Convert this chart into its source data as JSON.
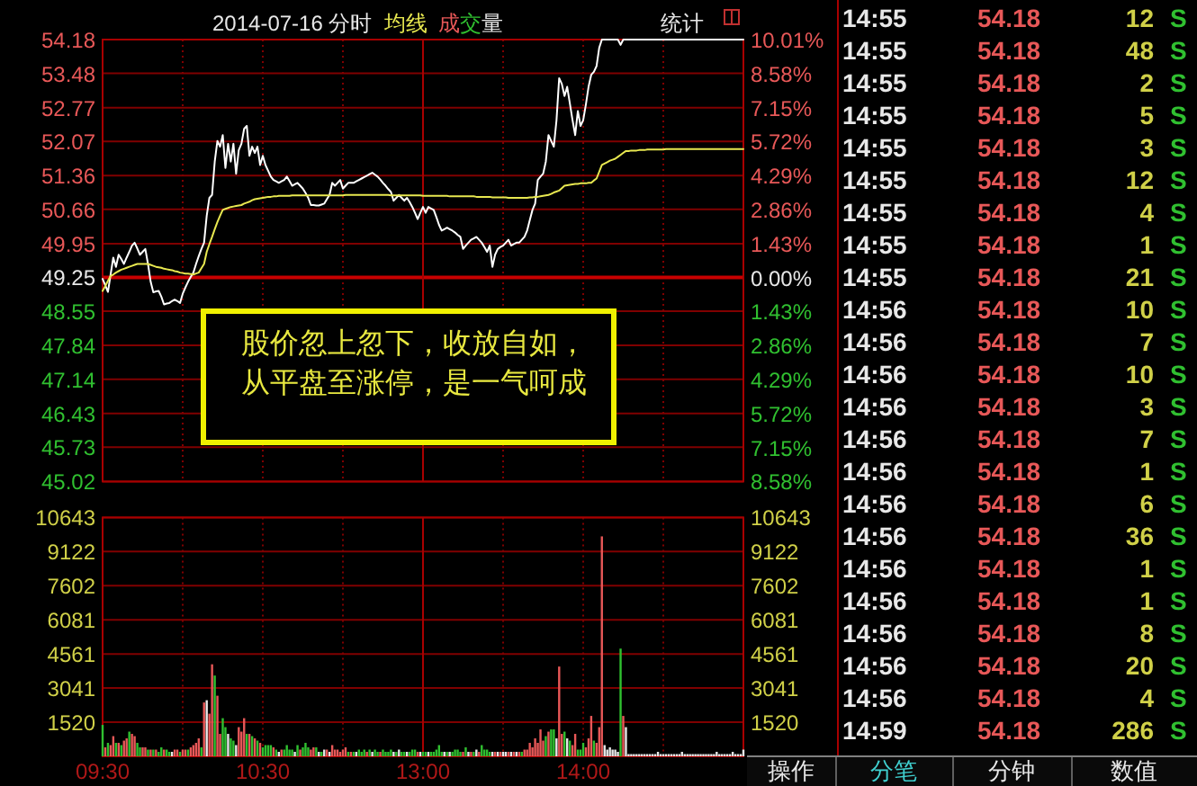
{
  "chart_data": [
    {
      "type": "line",
      "title": "2014-07-16 分时",
      "categories": [
        "09:30",
        null,
        null,
        null,
        null,
        null,
        null,
        null,
        null,
        null,
        null,
        null,
        null,
        null,
        null,
        null,
        null,
        null,
        null,
        null,
        null,
        null,
        null,
        null,
        null,
        null,
        null,
        null,
        null,
        null,
        null,
        null,
        null,
        null,
        null,
        null,
        null,
        null,
        null,
        null,
        null,
        null,
        null,
        null,
        null,
        null,
        null,
        null,
        null,
        null,
        null,
        null,
        null,
        null,
        null,
        null,
        null,
        null,
        null,
        null,
        "10:30",
        null,
        null,
        null,
        null,
        null,
        null,
        null,
        null,
        null,
        null,
        null,
        null,
        null,
        null,
        null,
        null,
        null,
        null,
        null,
        null,
        null,
        null,
        null,
        null,
        null,
        null,
        null,
        null,
        null,
        null,
        null,
        null,
        null,
        null,
        null,
        null,
        null,
        null,
        null,
        null,
        null,
        null,
        null,
        null,
        null,
        null,
        null,
        null,
        null,
        null,
        null,
        null,
        null,
        null,
        null,
        null,
        null,
        null,
        null,
        "13:00",
        null,
        null,
        null,
        null,
        null,
        null,
        null,
        null,
        null,
        null,
        null,
        null,
        null,
        null,
        null,
        null,
        null,
        null,
        null,
        null,
        null,
        null,
        null,
        null,
        null,
        null,
        null,
        null,
        null,
        null,
        null,
        null,
        null,
        null,
        null,
        null,
        null,
        null,
        null,
        null,
        null,
        null,
        null,
        null,
        null,
        null,
        null,
        null,
        null,
        null,
        null,
        null,
        null,
        null,
        null,
        null,
        null,
        null,
        null,
        "14:00",
        null,
        null,
        null,
        null,
        null,
        null,
        null,
        null,
        null,
        null,
        null,
        null,
        null,
        null,
        null,
        null,
        null,
        null,
        null,
        null,
        null,
        null,
        null,
        null,
        null,
        null,
        null,
        null,
        null,
        null,
        null,
        null,
        null,
        null,
        null,
        null,
        null,
        null,
        null,
        null,
        null,
        null,
        null,
        null,
        null,
        null,
        null,
        null,
        null,
        null,
        null,
        null,
        null,
        null,
        null,
        null,
        null,
        null,
        null,
        null
      ],
      "series": [
        {
          "color": "#ffffff",
          "values": [
            49.22,
            49.09,
            48.95,
            49.31,
            49.66,
            49.47,
            49.72,
            49.63,
            49.53,
            49.66,
            49.78,
            49.91,
            49.97,
            49.85,
            49.72,
            49.78,
            49.84,
            49.53,
            49.16,
            48.94,
            48.96,
            48.97,
            48.85,
            48.69,
            48.71,
            48.72,
            48.76,
            48.79,
            48.76,
            48.72,
            48.91,
            49.04,
            49.16,
            49.26,
            49.35,
            49.53,
            49.69,
            49.84,
            49.97,
            50.53,
            50.9,
            50.96,
            51.65,
            52.08,
            51.96,
            52.2,
            51.52,
            52.02,
            51.65,
            52.02,
            51.4,
            51.89,
            52.02,
            52.33,
            52.39,
            51.77,
            51.96,
            51.83,
            51.96,
            51.58,
            51.77,
            51.58,
            51.46,
            51.34,
            51.27,
            51.24,
            51.21,
            51.24,
            51.27,
            51.34,
            51.25,
            51.15,
            51.18,
            51.21,
            51.15,
            51.09,
            51.0,
            50.9,
            50.75,
            50.75,
            50.74,
            50.74,
            50.76,
            50.78,
            50.87,
            50.96,
            51.21,
            51.15,
            51.21,
            51.27,
            51.09,
            51.15,
            51.21,
            51.21,
            51.21,
            51.24,
            51.27,
            51.3,
            51.33,
            51.36,
            51.39,
            51.42,
            51.38,
            51.34,
            51.28,
            51.21,
            51.15,
            51.08,
            51.02,
            50.84,
            50.9,
            50.96,
            50.9,
            50.84,
            50.9,
            50.81,
            50.71,
            50.59,
            50.46,
            50.59,
            50.71,
            50.59,
            50.71,
            50.68,
            50.65,
            50.5,
            50.34,
            50.22,
            50.25,
            50.28,
            50.25,
            50.22,
            50.18,
            50.13,
            50.09,
            49.84,
            49.91,
            49.97,
            50.03,
            50.06,
            50.09,
            50.03,
            49.97,
            49.88,
            49.78,
            49.91,
            49.47,
            49.72,
            49.84,
            49.88,
            49.91,
            49.97,
            50.03,
            49.91,
            49.94,
            49.97,
            49.97,
            50.03,
            50.09,
            50.22,
            50.44,
            50.65,
            50.78,
            51.27,
            51.34,
            51.4,
            51.65,
            52.2,
            52.08,
            51.96,
            52.51,
            53.38,
            53.26,
            53.01,
            53.2,
            52.86,
            52.51,
            52.2,
            52.7,
            52.39,
            52.51,
            52.83,
            53.2,
            53.45,
            53.51,
            53.63,
            54.01,
            54.18,
            54.18,
            54.18,
            54.18,
            54.18,
            54.18,
            54.18,
            54.07,
            54.18,
            54.18,
            54.18,
            54.18,
            54.18,
            54.18,
            54.18,
            54.18,
            54.18,
            54.18,
            54.18,
            54.18,
            54.18,
            54.18,
            54.18,
            54.18,
            54.18,
            54.18,
            54.18,
            54.18,
            54.18,
            54.18,
            54.18,
            54.18,
            54.18,
            54.18,
            54.18,
            54.18,
            54.18,
            54.18,
            54.18,
            54.18,
            54.18,
            54.18,
            54.18,
            54.18,
            54.18,
            54.18,
            54.18,
            54.18,
            54.18,
            54.18,
            54.18,
            54.18,
            54.18,
            54.18
          ]
        },
        {
          "name": "均线",
          "color": "#e8e850",
          "values": [
            48.97,
            49.07,
            49.18,
            49.28,
            49.31,
            49.35,
            49.38,
            49.41,
            49.43,
            49.45,
            49.47,
            49.49,
            49.51,
            49.53,
            49.53,
            49.53,
            49.53,
            49.53,
            49.51,
            49.49,
            49.47,
            49.46,
            49.45,
            49.43,
            49.42,
            49.41,
            49.4,
            49.38,
            49.37,
            49.35,
            49.34,
            49.33,
            49.33,
            49.32,
            49.31,
            49.33,
            49.35,
            49.44,
            49.53,
            49.78,
            49.94,
            50.09,
            50.25,
            50.4,
            50.53,
            50.65,
            50.67,
            50.69,
            50.71,
            50.72,
            50.73,
            50.74,
            50.75,
            50.78,
            50.8,
            50.82,
            50.85,
            50.87,
            50.88,
            50.89,
            50.9,
            50.91,
            50.92,
            50.92,
            50.93,
            50.93,
            50.94,
            50.94,
            50.94,
            50.94,
            50.94,
            50.95,
            50.95,
            50.95,
            50.95,
            50.95,
            50.95,
            50.95,
            50.95,
            50.95,
            50.95,
            50.95,
            50.95,
            50.95,
            50.95,
            50.95,
            50.95,
            50.95,
            50.95,
            50.95,
            50.95,
            50.96,
            50.96,
            50.96,
            50.96,
            50.96,
            50.96,
            50.96,
            50.96,
            50.96,
            50.96,
            50.96,
            50.96,
            50.96,
            50.96,
            50.96,
            50.96,
            50.96,
            50.95,
            50.95,
            50.95,
            50.95,
            50.95,
            50.95,
            50.95,
            50.95,
            50.95,
            50.95,
            50.95,
            50.95,
            50.94,
            50.94,
            50.94,
            50.94,
            50.94,
            50.94,
            50.94,
            50.94,
            50.94,
            50.94,
            50.93,
            50.93,
            50.93,
            50.93,
            50.93,
            50.93,
            50.93,
            50.93,
            50.93,
            50.93,
            50.92,
            50.92,
            50.92,
            50.92,
            50.92,
            50.92,
            50.91,
            50.91,
            50.91,
            50.91,
            50.91,
            50.91,
            50.9,
            50.9,
            50.9,
            50.9,
            50.9,
            50.9,
            50.9,
            50.9,
            50.91,
            50.91,
            50.92,
            50.92,
            50.93,
            50.94,
            50.95,
            50.96,
            50.98,
            51.01,
            51.03,
            51.05,
            51.1,
            51.15,
            51.16,
            51.17,
            51.18,
            51.19,
            51.19,
            51.2,
            51.2,
            51.2,
            51.21,
            51.21,
            51.26,
            51.3,
            51.44,
            51.58,
            51.61,
            51.64,
            51.67,
            51.69,
            51.71,
            51.75,
            51.79,
            51.83,
            51.87,
            51.87,
            51.88,
            51.88,
            51.88,
            51.89,
            51.89,
            51.89,
            51.9,
            51.9,
            51.9,
            51.9,
            51.9,
            51.9,
            51.9,
            51.91,
            51.91,
            51.91,
            51.91,
            51.91,
            51.91,
            51.91,
            51.91,
            51.91,
            51.91,
            51.91,
            51.91,
            51.91,
            51.91,
            51.91,
            51.91,
            51.91,
            51.91,
            51.91,
            51.91,
            51.91,
            51.91,
            51.91,
            51.91,
            51.91,
            51.91,
            51.91,
            51.91,
            51.91,
            51.91
          ]
        }
      ],
      "ylim": [
        45.02,
        54.18
      ],
      "yticks": [
        54.18,
        53.48,
        52.77,
        52.07,
        51.36,
        50.66,
        49.95,
        49.25,
        48.55,
        47.84,
        47.14,
        46.43,
        45.73,
        45.02
      ],
      "y2lim": [
        -8.58,
        10.01
      ],
      "y2ticks": [
        {
          "value": 10.01,
          "label": "10.01%"
        },
        {
          "value": 8.58,
          "label": "8.58%"
        },
        {
          "value": 7.15,
          "label": "7.15%"
        },
        {
          "value": 5.72,
          "label": "5.72%"
        },
        {
          "value": 4.29,
          "label": "4.29%"
        },
        {
          "value": 2.86,
          "label": "2.86%"
        },
        {
          "value": 1.43,
          "label": "1.43%"
        },
        {
          "value": 0,
          "label": "0.00%"
        },
        {
          "value": -1.43,
          "label": "1.43%"
        },
        {
          "value": -2.86,
          "label": "2.86%"
        },
        {
          "value": -4.29,
          "label": "4.29%"
        },
        {
          "value": -5.72,
          "label": "5.72%"
        },
        {
          "value": -7.15,
          "label": "7.15%"
        },
        {
          "value": -8.58,
          "label": "8.58%"
        }
      ],
      "tick_labels": "y",
      "grid": true,
      "legend": "top",
      "ref_lines": [
        {
          "axis": "y",
          "value": 49.25
        },
        {
          "axis": "x",
          "value": "13:00"
        }
      ],
      "annotations": [
        "股价忽上忽下，收放自如，从平盘至涨停，是一气呵成",
        "统计"
      ]
    },
    {
      "type": "bar",
      "categories": [
        "09:30",
        null,
        null,
        null,
        null,
        null,
        null,
        null,
        null,
        null,
        null,
        null,
        null,
        null,
        null,
        null,
        null,
        null,
        null,
        null,
        null,
        null,
        null,
        null,
        null,
        null,
        null,
        null,
        null,
        null,
        null,
        null,
        null,
        null,
        null,
        null,
        null,
        null,
        null,
        null,
        null,
        null,
        null,
        null,
        null,
        null,
        null,
        null,
        null,
        null,
        null,
        null,
        null,
        null,
        null,
        null,
        null,
        null,
        null,
        null,
        "10:30",
        null,
        null,
        null,
        null,
        null,
        null,
        null,
        null,
        null,
        null,
        null,
        null,
        null,
        null,
        null,
        null,
        null,
        null,
        null,
        null,
        null,
        null,
        null,
        null,
        null,
        null,
        null,
        null,
        null,
        null,
        null,
        null,
        null,
        null,
        null,
        null,
        null,
        null,
        null,
        null,
        null,
        null,
        null,
        null,
        null,
        null,
        null,
        null,
        null,
        null,
        null,
        null,
        null,
        null,
        null,
        null,
        null,
        null,
        null,
        "13:00",
        null,
        null,
        null,
        null,
        null,
        null,
        null,
        null,
        null,
        null,
        null,
        null,
        null,
        null,
        null,
        null,
        null,
        null,
        null,
        null,
        null,
        null,
        null,
        null,
        null,
        null,
        null,
        null,
        null,
        null,
        null,
        null,
        null,
        null,
        null,
        null,
        null,
        null,
        null,
        null,
        null,
        null,
        null,
        null,
        null,
        null,
        null,
        null,
        null,
        null,
        null,
        null,
        null,
        null,
        null,
        null,
        null,
        null,
        null,
        "14:00",
        null,
        null,
        null,
        null,
        null,
        null,
        null,
        null,
        null,
        null,
        null,
        null,
        null,
        null,
        null,
        null,
        null,
        null,
        null,
        null,
        null,
        null,
        null,
        null,
        null,
        null,
        null,
        null,
        null,
        null,
        null,
        null,
        null,
        null,
        null,
        null,
        null,
        null,
        null,
        null,
        null,
        null,
        null,
        null,
        null,
        null,
        null,
        null,
        null,
        null,
        null,
        null,
        null,
        null,
        null,
        null,
        null,
        null,
        null,
        null
      ],
      "series": [
        {
          "name": "成交量",
          "values": [
            1400,
            400,
            600,
            500,
            900,
            600,
            600,
            500,
            700,
            800,
            1100,
            1000,
            900,
            600,
            400,
            400,
            400,
            300,
            300,
            300,
            300,
            200,
            400,
            300,
            300,
            200,
            200,
            300,
            300,
            200,
            300,
            300,
            300,
            400,
            500,
            600,
            800,
            400,
            2400,
            2500,
            1900,
            4100,
            3600,
            2700,
            1000,
            1700,
            1300,
            1000,
            800,
            700,
            500,
            1300,
            1100,
            1700,
            1000,
            1000,
            900,
            800,
            700,
            600,
            400,
            500,
            500,
            500,
            400,
            300,
            200,
            300,
            300,
            500,
            300,
            300,
            200,
            500,
            300,
            400,
            600,
            400,
            300,
            400,
            400,
            200,
            200,
            300,
            300,
            200,
            500,
            300,
            300,
            200,
            300,
            400,
            200,
            200,
            200,
            200,
            300,
            200,
            300,
            200,
            300,
            200,
            300,
            200,
            200,
            300,
            200,
            200,
            300,
            200,
            200,
            300,
            200,
            200,
            200,
            200,
            300,
            300,
            200,
            200,
            200,
            200,
            200,
            200,
            200,
            300,
            500,
            200,
            200,
            200,
            200,
            200,
            300,
            300,
            200,
            200,
            400,
            200,
            200,
            200,
            300,
            200,
            500,
            300,
            300,
            200,
            200,
            200,
            200,
            200,
            200,
            200,
            200,
            200,
            200,
            200,
            200,
            200,
            300,
            300,
            600,
            400,
            800,
            600,
            1200,
            700,
            900,
            1100,
            1200,
            1200,
            800,
            4000,
            1000,
            1100,
            800,
            700,
            500,
            1000,
            300,
            300,
            600,
            400,
            800,
            1800,
            700,
            600,
            1300,
            9800,
            500,
            300,
            400,
            300,
            300,
            200,
            4800,
            1800,
            1300,
            100,
            100,
            100,
            100,
            100,
            100,
            100,
            100,
            100,
            100,
            100,
            200,
            100,
            100,
            100,
            100,
            100,
            100,
            100,
            100,
            200,
            100,
            100,
            100,
            100,
            100,
            100,
            100,
            100,
            100,
            100,
            100,
            100,
            200,
            100,
            100,
            100,
            100,
            100,
            200,
            100,
            100,
            100,
            300
          ],
          "colors": [
            "#30c030",
            "#e85858",
            "#30c030",
            "#e85858",
            "#e85858",
            "#30c030",
            "#e85858",
            "#30c030",
            "#e85858",
            "#e85858",
            "#30c030",
            "#e85858",
            "#e85858",
            "#30c030",
            "#30c030",
            "#e85858",
            "#e85858",
            "#30c030",
            "#e85858",
            "#30c030",
            "#e85858",
            "#30c030",
            "#30c030",
            "#e85858",
            "#30c030",
            "#30c030",
            "#e8e8e8",
            "#e85858",
            "#e85858",
            "#30c030",
            "#e85858",
            "#e85858",
            "#30c030",
            "#e85858",
            "#e85858",
            "#e85858",
            "#e85858",
            "#30c030",
            "#e85858",
            "#e8e8e8",
            "#e85858",
            "#e85858",
            "#30c030",
            "#e85858",
            "#e85858",
            "#30c030",
            "#30c030",
            "#e8e8e8",
            "#30c030",
            "#30c030",
            "#e8e8e8",
            "#e85858",
            "#e85858",
            "#e85858",
            "#30c030",
            "#e85858",
            "#30c030",
            "#e85858",
            "#30c030",
            "#e85858",
            "#30c030",
            "#30c030",
            "#30c030",
            "#30c030",
            "#e85858",
            "#30c030",
            "#e8e8e8",
            "#e85858",
            "#30c030",
            "#30c030",
            "#30c030",
            "#30c030",
            "#e8e8e8",
            "#30c030",
            "#e85858",
            "#30c030",
            "#30c030",
            "#30c030",
            "#e85858",
            "#e85858",
            "#30c030",
            "#e8e8e8",
            "#30c030",
            "#e8e8e8",
            "#e85858",
            "#e8e8e8",
            "#e85858",
            "#e85858",
            "#e85858",
            "#e85858",
            "#e85858",
            "#e85858",
            "#30c030",
            "#e85858",
            "#30c030",
            "#e8e8e8",
            "#30c030",
            "#30c030",
            "#30c030",
            "#e85858",
            "#30c030",
            "#e8e8e8",
            "#30c030",
            "#30c030",
            "#e85858",
            "#30c030",
            "#30c030",
            "#30c030",
            "#30c030",
            "#e8e8e8",
            "#30c030",
            "#e8e8e8",
            "#30c030",
            "#30c030",
            "#e8e8e8",
            "#30c030",
            "#30c030",
            "#30c030",
            "#e85858",
            "#e8e8e8",
            "#30c030",
            "#30c030",
            "#e8e8e8",
            "#30c030",
            "#30c030",
            "#30c030",
            "#30c030",
            "#30c030",
            "#e8e8e8",
            "#30c030",
            "#e8e8e8",
            "#30c030",
            "#30c030",
            "#30c030",
            "#30c030",
            "#e85858",
            "#30c030",
            "#e8e8e8",
            "#e85858",
            "#30c030",
            "#e8e8e8",
            "#e85858",
            "#30c030",
            "#30c030",
            "#30c030",
            "#30c030",
            "#e8e8e8",
            "#e85858",
            "#e8e8e8",
            "#e85858",
            "#e8e8e8",
            "#e8e8e8",
            "#e85858",
            "#e8e8e8",
            "#e85858",
            "#e8e8e8",
            "#e85858",
            "#30c030",
            "#e85858",
            "#e85858",
            "#e85858",
            "#e85858",
            "#e85858",
            "#e85858",
            "#e85858",
            "#e85858",
            "#30c030",
            "#e85858",
            "#30c030",
            "#30c030",
            "#e8e8e8",
            "#e85858",
            "#e85858",
            "#30c030",
            "#e8e8e8",
            "#30c030",
            "#e85858",
            "#e85858",
            "#30c030",
            "#30c030",
            "#30c030",
            "#e85858",
            "#e85858",
            "#e85858",
            "#30c030",
            "#e85858",
            "#e85858",
            "#e85858",
            "#e8e8e8",
            "#e8e8e8",
            "#e8e8e8",
            "#e8e8e8",
            "#e8e8e8",
            "#e8e8e8",
            "#30c030",
            "#e85858",
            "#e8e8e8",
            "#e8e8e8",
            "#e8e8e8",
            "#e8e8e8",
            "#e8e8e8",
            "#e8e8e8",
            "#e8e8e8",
            "#e8e8e8",
            "#e8e8e8",
            "#e8e8e8",
            "#e8e8e8",
            "#e8e8e8",
            "#e8e8e8",
            "#e8e8e8",
            "#e8e8e8",
            "#e8e8e8",
            "#e8e8e8",
            "#e8e8e8",
            "#e8e8e8",
            "#e8e8e8",
            "#e8e8e8",
            "#e8e8e8",
            "#e8e8e8",
            "#e8e8e8",
            "#e8e8e8",
            "#e8e8e8",
            "#e8e8e8",
            "#e8e8e8",
            "#e8e8e8",
            "#e8e8e8",
            "#e8e8e8",
            "#e8e8e8",
            "#e8e8e8",
            "#e8e8e8",
            "#e8e8e8",
            "#e8e8e8",
            "#e8e8e8",
            "#e8e8e8",
            "#e8e8e8",
            "#e8e8e8",
            "#e8e8e8",
            "#e8e8e8",
            "#e8e8e8",
            "#e8e8e8",
            "#e8e8e8"
          ]
        }
      ],
      "ylim": [
        0,
        10643
      ],
      "yticks": [
        10643,
        9122,
        7602,
        6081,
        4561,
        3041,
        1520
      ],
      "y2lim": [
        0,
        10643
      ],
      "y2ticks": [
        10643,
        9122,
        7602,
        6081,
        4561,
        3041,
        1520
      ],
      "grid": true,
      "legend": "top",
      "ref_lines": [
        {
          "axis": "x",
          "value": "13:00"
        }
      ]
    },
    {
      "type": "other",
      "annotations": [
        "14:55",
        "54.18",
        "12",
        "S",
        "14:55",
        "54.18",
        "48",
        "S",
        "14:55",
        "54.18",
        "2",
        "S",
        "14:55",
        "54.18",
        "5",
        "S",
        "14:55",
        "54.18",
        "3",
        "S",
        "14:55",
        "54.18",
        "12",
        "S",
        "14:55",
        "54.18",
        "4",
        "S",
        "14:55",
        "54.18",
        "1",
        "S",
        "14:55",
        "54.18",
        "21",
        "S",
        "14:56",
        "54.18",
        "10",
        "S",
        "14:56",
        "54.18",
        "7",
        "S",
        "14:56",
        "54.18",
        "10",
        "S",
        "14:56",
        "54.18",
        "3",
        "S",
        "14:56",
        "54.18",
        "7",
        "S",
        "14:56",
        "54.18",
        "1",
        "S",
        "14:56",
        "54.18",
        "6",
        "S",
        "14:56",
        "54.18",
        "36",
        "S",
        "14:56",
        "54.18",
        "1",
        "S",
        "14:56",
        "54.18",
        "1",
        "S",
        "14:56",
        "54.18",
        "8",
        "S",
        "14:56",
        "54.18",
        "20",
        "S",
        "14:56",
        "54.18",
        "4",
        "S",
        "14:59",
        "54.18",
        "286",
        "S"
      ]
    },
    {
      "type": "other",
      "annotations": [
        "操作",
        "分笔",
        "分钟",
        "数值"
      ]
    }
  ]
}
